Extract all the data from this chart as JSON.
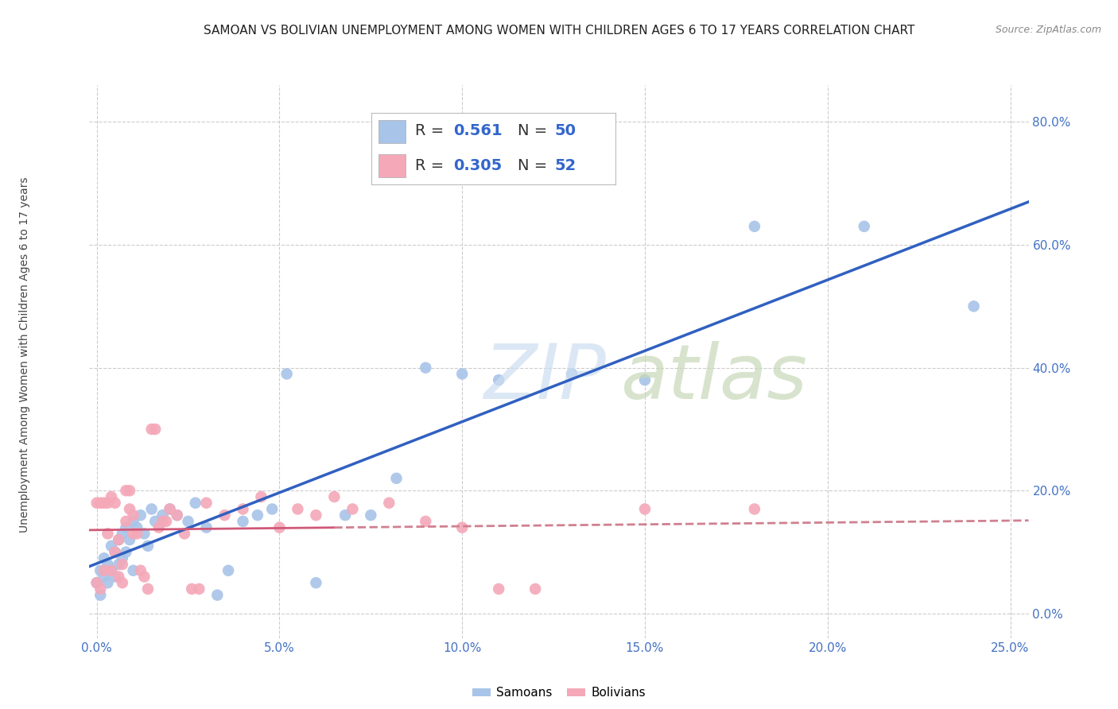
{
  "title": "SAMOAN VS BOLIVIAN UNEMPLOYMENT AMONG WOMEN WITH CHILDREN AGES 6 TO 17 YEARS CORRELATION CHART",
  "source": "Source: ZipAtlas.com",
  "ylabel": "Unemployment Among Women with Children Ages 6 to 17 years",
  "xlabel_ticks": [
    "0.0%",
    "5.0%",
    "10.0%",
    "15.0%",
    "20.0%",
    "25.0%"
  ],
  "xlabel_vals": [
    0.0,
    0.05,
    0.1,
    0.15,
    0.2,
    0.25
  ],
  "ylabel_ticks": [
    "0.0%",
    "20.0%",
    "40.0%",
    "60.0%",
    "80.0%"
  ],
  "ylabel_vals": [
    0.0,
    0.2,
    0.4,
    0.6,
    0.8
  ],
  "xlim": [
    -0.002,
    0.255
  ],
  "ylim": [
    -0.04,
    0.86
  ],
  "samoans_color": "#a8c4e8",
  "bolivians_color": "#f4a8b8",
  "samoans_line_color": "#3060c0",
  "bolivians_line_color": "#d05878",
  "bolivians_line_dashed_color": "#d08090",
  "legend_label_samoan_display": "Samoans",
  "legend_label_bolivian_display": "Bolivians",
  "R_samoan": 0.561,
  "N_samoan": 50,
  "R_bolivian": 0.305,
  "N_bolivian": 52,
  "watermark_zip": "ZIP",
  "watermark_atlas": "atlas",
  "samoans_x": [
    0.0,
    0.001,
    0.001,
    0.002,
    0.002,
    0.003,
    0.003,
    0.004,
    0.004,
    0.005,
    0.005,
    0.006,
    0.006,
    0.007,
    0.007,
    0.008,
    0.008,
    0.009,
    0.01,
    0.01,
    0.011,
    0.012,
    0.013,
    0.014,
    0.015,
    0.016,
    0.018,
    0.02,
    0.022,
    0.025,
    0.027,
    0.03,
    0.033,
    0.036,
    0.04,
    0.044,
    0.048,
    0.052,
    0.06,
    0.068,
    0.075,
    0.082,
    0.09,
    0.1,
    0.11,
    0.13,
    0.15,
    0.18,
    0.21,
    0.24
  ],
  "samoans_y": [
    0.05,
    0.03,
    0.07,
    0.06,
    0.09,
    0.05,
    0.08,
    0.07,
    0.11,
    0.06,
    0.1,
    0.08,
    0.12,
    0.09,
    0.13,
    0.1,
    0.14,
    0.12,
    0.15,
    0.07,
    0.14,
    0.16,
    0.13,
    0.11,
    0.17,
    0.15,
    0.16,
    0.17,
    0.16,
    0.15,
    0.18,
    0.14,
    0.03,
    0.07,
    0.15,
    0.16,
    0.17,
    0.39,
    0.05,
    0.16,
    0.16,
    0.22,
    0.4,
    0.39,
    0.38,
    0.39,
    0.38,
    0.63,
    0.63,
    0.5
  ],
  "bolivians_x": [
    0.0,
    0.0,
    0.001,
    0.001,
    0.002,
    0.002,
    0.003,
    0.003,
    0.004,
    0.004,
    0.005,
    0.005,
    0.006,
    0.006,
    0.007,
    0.007,
    0.008,
    0.008,
    0.009,
    0.009,
    0.01,
    0.01,
    0.011,
    0.012,
    0.013,
    0.014,
    0.015,
    0.016,
    0.017,
    0.018,
    0.019,
    0.02,
    0.022,
    0.024,
    0.026,
    0.028,
    0.03,
    0.035,
    0.04,
    0.045,
    0.05,
    0.055,
    0.06,
    0.065,
    0.07,
    0.08,
    0.09,
    0.1,
    0.11,
    0.12,
    0.15,
    0.18
  ],
  "bolivians_y": [
    0.05,
    0.18,
    0.04,
    0.18,
    0.18,
    0.07,
    0.18,
    0.13,
    0.19,
    0.07,
    0.18,
    0.1,
    0.12,
    0.06,
    0.05,
    0.08,
    0.15,
    0.2,
    0.2,
    0.17,
    0.13,
    0.16,
    0.13,
    0.07,
    0.06,
    0.04,
    0.3,
    0.3,
    0.14,
    0.15,
    0.15,
    0.17,
    0.16,
    0.13,
    0.04,
    0.04,
    0.18,
    0.16,
    0.17,
    0.19,
    0.14,
    0.17,
    0.16,
    0.19,
    0.17,
    0.18,
    0.15,
    0.14,
    0.04,
    0.04,
    0.17,
    0.17
  ],
  "title_fontsize": 11,
  "source_fontsize": 9,
  "tick_fontsize": 11,
  "ylabel_fontsize": 10
}
